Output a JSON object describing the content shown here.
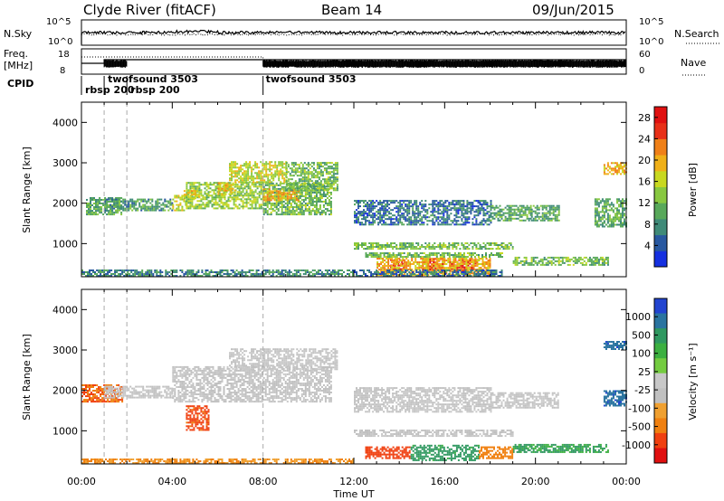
{
  "header": {
    "station": "Clyde River (fitACF)",
    "beam": "Beam 14",
    "date": "09/Jun/2015"
  },
  "parameter_panels": {
    "nsky": {
      "label": "N.Sky",
      "ticks": [
        "10^5",
        "10^0"
      ]
    },
    "nsearch": {
      "label": "N.Search",
      "ticks": [
        "10^5",
        "10^0"
      ]
    },
    "freq": {
      "label_line1": "Freq.",
      "label_line2": "[MHz]",
      "ticks": [
        "18",
        "8"
      ]
    },
    "nave": {
      "label": "Nave",
      "ticks": [
        "60",
        "0"
      ]
    },
    "cpid": {
      "label": "CPID",
      "modes": [
        {
          "name": "rbsp 200",
          "start_hour": 0.0,
          "end_hour": 1.0
        },
        {
          "name": "twofsound 3503",
          "start_hour": 1.0,
          "end_hour": 2.0
        },
        {
          "name": "rbsp 200",
          "start_hour": 2.0,
          "end_hour": 8.0
        },
        {
          "name": "twofsound 3503",
          "start_hour": 8.0,
          "end_hour": 24.0
        }
      ]
    }
  },
  "axes": {
    "xlabel": "Time UT",
    "ylabel": "Slant Range [km]",
    "x_tick_labels": [
      "00:00",
      "04:00",
      "08:00",
      "12:00",
      "16:00",
      "20:00",
      "00:00"
    ],
    "y_tick_labels": [
      "1000",
      "2000",
      "3000",
      "4000"
    ]
  },
  "power_scale": {
    "label": "Power [dB]",
    "ticks": [
      "4",
      "8",
      "12",
      "16",
      "20",
      "24",
      "28"
    ],
    "colors": [
      "#1530e0",
      "#2858a0",
      "#3f8a78",
      "#58a85a",
      "#88c840",
      "#c8d820",
      "#f0b018",
      "#f08018",
      "#e83018",
      "#e01010"
    ]
  },
  "velocity_scale": {
    "label": "Velocity [m s⁻¹]",
    "ticks": [
      "1000",
      "500",
      "100",
      "25",
      "-25",
      "-100",
      "-500",
      "-1000"
    ],
    "colors": [
      "#2244d0",
      "#2a74a0",
      "#2f9860",
      "#3cb040",
      "#74cc40",
      "#c8c8c8",
      "#c0c0c0",
      "#f0a030",
      "#f08010",
      "#f04010",
      "#e01010"
    ]
  },
  "chart_data": [
    {
      "type": "heatmap",
      "title": "Power",
      "xlabel": "Time UT",
      "ylabel": "Slant Range [km]",
      "xlim": [
        0,
        24
      ],
      "ylim": [
        180,
        4500
      ],
      "colorbar": {
        "label": "Power [dB]",
        "range": [
          0,
          30
        ]
      },
      "regions": [
        {
          "t0": 0.2,
          "t1": 1.8,
          "r0": 1700,
          "r1": 2150,
          "value": 10
        },
        {
          "t0": 1.0,
          "t1": 4.0,
          "r0": 1800,
          "r1": 2100,
          "value": 9
        },
        {
          "t0": 4.0,
          "t1": 4.6,
          "r0": 1800,
          "r1": 2200,
          "value": 16
        },
        {
          "t0": 4.6,
          "t1": 8.0,
          "r0": 1850,
          "r1": 2500,
          "value": 14
        },
        {
          "t0": 8.0,
          "t1": 11.0,
          "r0": 1700,
          "r1": 2500,
          "value": 12
        },
        {
          "t0": 4.5,
          "t1": 5.2,
          "r0": 2100,
          "r1": 2300,
          "value": 18
        },
        {
          "t0": 6.0,
          "t1": 6.8,
          "r0": 2200,
          "r1": 2500,
          "value": 18
        },
        {
          "t0": 8.0,
          "t1": 9.6,
          "r0": 2050,
          "r1": 2350,
          "value": 20
        },
        {
          "t0": 6.5,
          "t1": 9.0,
          "r0": 2500,
          "r1": 3000,
          "value": 16
        },
        {
          "t0": 9.0,
          "t1": 11.3,
          "r0": 2300,
          "r1": 3000,
          "value": 12
        },
        {
          "t0": 12.0,
          "t1": 18.0,
          "r0": 1450,
          "r1": 2050,
          "value": 6
        },
        {
          "t0": 18.0,
          "t1": 19.8,
          "r0": 1550,
          "r1": 1950,
          "value": 10
        },
        {
          "t0": 19.8,
          "t1": 21.0,
          "r0": 1550,
          "r1": 1950,
          "value": 10
        },
        {
          "t0": 12.0,
          "t1": 19.0,
          "r0": 850,
          "r1": 1000,
          "value": 12
        },
        {
          "t0": 12.5,
          "t1": 18.5,
          "r0": 650,
          "r1": 780,
          "value": 12
        },
        {
          "t0": 19.0,
          "t1": 23.2,
          "r0": 450,
          "r1": 650,
          "value": 12
        },
        {
          "t0": 13.6,
          "t1": 14.2,
          "r0": 300,
          "r1": 600,
          "value": 28
        },
        {
          "t0": 15.0,
          "t1": 15.9,
          "r0": 280,
          "r1": 620,
          "value": 29
        },
        {
          "t0": 16.2,
          "t1": 17.4,
          "r0": 300,
          "r1": 600,
          "value": 28
        },
        {
          "t0": 13.0,
          "t1": 18.0,
          "r0": 200,
          "r1": 650,
          "value": 20
        },
        {
          "t0": 0.0,
          "t1": 12.0,
          "r0": 180,
          "r1": 320,
          "value": 8
        },
        {
          "t0": 12.0,
          "t1": 18.5,
          "r0": 180,
          "r1": 320,
          "value": 6
        },
        {
          "t0": 23.0,
          "t1": 24.0,
          "r0": 2700,
          "r1": 3000,
          "value": 20
        },
        {
          "t0": 22.6,
          "t1": 24.0,
          "r0": 1400,
          "r1": 2100,
          "value": 10
        }
      ]
    },
    {
      "type": "heatmap",
      "title": "Velocity",
      "xlabel": "Time UT",
      "ylabel": "Slant Range [km]",
      "xlim": [
        0,
        24
      ],
      "ylim": [
        180,
        4500
      ],
      "colorbar": {
        "label": "Velocity [m s⁻¹]",
        "range": [
          -1000,
          1000
        ]
      },
      "regions": [
        {
          "t0": 0.0,
          "t1": 1.8,
          "r0": 1700,
          "r1": 2150,
          "value": -300
        },
        {
          "t0": 1.0,
          "t1": 4.0,
          "r0": 1800,
          "r1": 2100,
          "value": 0
        },
        {
          "t0": 4.0,
          "t1": 11.0,
          "r0": 1700,
          "r1": 2600,
          "value": 0
        },
        {
          "t0": 6.5,
          "t1": 11.3,
          "r0": 2500,
          "r1": 3000,
          "value": 0
        },
        {
          "t0": 4.6,
          "t1": 5.6,
          "r0": 1000,
          "r1": 1600,
          "value": -400
        },
        {
          "t0": 12.0,
          "t1": 18.0,
          "r0": 1450,
          "r1": 2050,
          "value": 0
        },
        {
          "t0": 18.0,
          "t1": 21.0,
          "r0": 1550,
          "r1": 1950,
          "value": 0
        },
        {
          "t0": 12.0,
          "t1": 19.0,
          "r0": 850,
          "r1": 1000,
          "value": 0
        },
        {
          "t0": 19.0,
          "t1": 23.2,
          "r0": 450,
          "r1": 650,
          "value": 120
        },
        {
          "t0": 12.5,
          "t1": 14.5,
          "r0": 300,
          "r1": 600,
          "value": -500
        },
        {
          "t0": 14.5,
          "t1": 17.5,
          "r0": 250,
          "r1": 620,
          "value": 150
        },
        {
          "t0": 17.5,
          "t1": 19.0,
          "r0": 300,
          "r1": 600,
          "value": -200
        },
        {
          "t0": 0.0,
          "t1": 12.0,
          "r0": 180,
          "r1": 300,
          "value": -100
        },
        {
          "t0": 23.0,
          "t1": 24.0,
          "r0": 3000,
          "r1": 3200,
          "value": 600
        },
        {
          "t0": 23.0,
          "t1": 24.0,
          "r0": 1600,
          "r1": 2000,
          "value": 600
        }
      ]
    }
  ]
}
